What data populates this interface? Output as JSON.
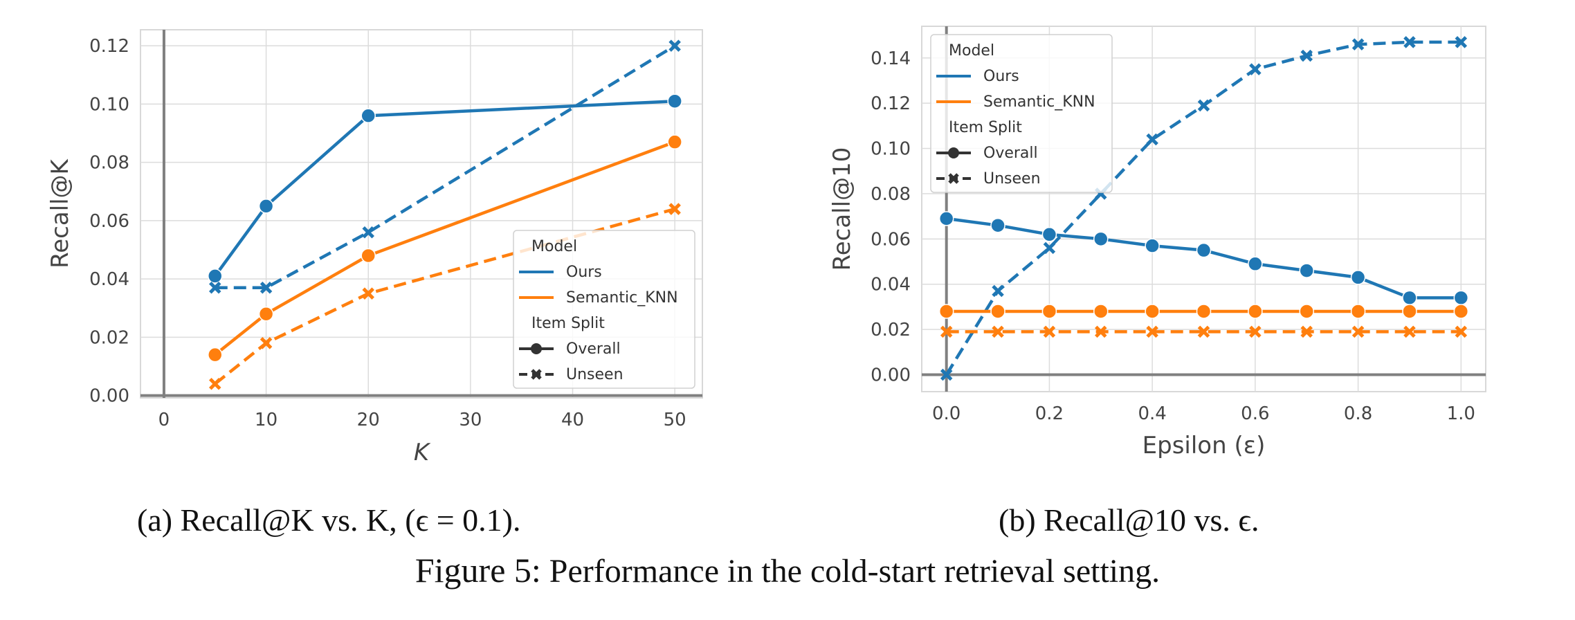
{
  "chart_data": [
    {
      "type": "line",
      "id": "a",
      "title": "",
      "xlabel": "K",
      "ylabel": "Recall@K",
      "x": [
        5,
        10,
        20,
        50
      ],
      "xlim": [
        -2.3,
        52.7
      ],
      "ylim": [
        -0.0008,
        0.1255
      ],
      "xticks": [
        0,
        10,
        20,
        30,
        40,
        50
      ],
      "xtick_labels": [
        "0",
        "10",
        "20",
        "30",
        "40",
        "50"
      ],
      "yticks": [
        0.0,
        0.02,
        0.04,
        0.06,
        0.08,
        0.1,
        0.12
      ],
      "ytick_labels": [
        "0.00",
        "0.02",
        "0.04",
        "0.06",
        "0.08",
        "0.10",
        "0.12"
      ],
      "grid": true,
      "legend_position": "lower-right",
      "series": [
        {
          "name": "Ours - Overall",
          "model": "Ours",
          "split": "Overall",
          "color": "#1f77b4",
          "dash": false,
          "marker": "circle",
          "values": [
            0.041,
            0.065,
            0.096,
            0.101
          ]
        },
        {
          "name": "Ours - Unseen",
          "model": "Ours",
          "split": "Unseen",
          "color": "#1f77b4",
          "dash": true,
          "marker": "x",
          "values": [
            0.037,
            0.037,
            0.056,
            0.12
          ]
        },
        {
          "name": "Semantic_KNN - Overall",
          "model": "Semantic_KNN",
          "split": "Overall",
          "color": "#ff7f0e",
          "dash": false,
          "marker": "circle",
          "values": [
            0.014,
            0.028,
            0.048,
            0.087
          ]
        },
        {
          "name": "Semantic_KNN - Unseen",
          "model": "Semantic_KNN",
          "split": "Unseen",
          "color": "#ff7f0e",
          "dash": true,
          "marker": "x",
          "values": [
            0.004,
            0.018,
            0.035,
            0.064
          ]
        }
      ]
    },
    {
      "type": "line",
      "id": "b",
      "title": "",
      "xlabel": "Epsilon (ε)",
      "ylabel": "Recall@10",
      "x": [
        0.0,
        0.1,
        0.2,
        0.3,
        0.4,
        0.5,
        0.6,
        0.7,
        0.8,
        0.9,
        1.0
      ],
      "xlim": [
        -0.048,
        1.048
      ],
      "ylim": [
        -0.0075,
        0.154
      ],
      "xticks": [
        0.0,
        0.2,
        0.4,
        0.6,
        0.8,
        1.0
      ],
      "xtick_labels": [
        "0.0",
        "0.2",
        "0.4",
        "0.6",
        "0.8",
        "1.0"
      ],
      "yticks": [
        0.0,
        0.02,
        0.04,
        0.06,
        0.08,
        0.1,
        0.12,
        0.14
      ],
      "ytick_labels": [
        "0.00",
        "0.02",
        "0.04",
        "0.06",
        "0.08",
        "0.10",
        "0.12",
        "0.14"
      ],
      "grid": true,
      "legend_position": "upper-left",
      "series": [
        {
          "name": "Ours - Overall",
          "model": "Ours",
          "split": "Overall",
          "color": "#1f77b4",
          "dash": false,
          "marker": "circle",
          "values": [
            0.069,
            0.066,
            0.062,
            0.06,
            0.057,
            0.055,
            0.049,
            0.046,
            0.043,
            0.034,
            0.034
          ]
        },
        {
          "name": "Ours - Unseen",
          "model": "Ours",
          "split": "Unseen",
          "color": "#1f77b4",
          "dash": true,
          "marker": "x",
          "values": [
            0.0,
            0.037,
            0.056,
            0.08,
            0.104,
            0.119,
            0.135,
            0.141,
            0.146,
            0.147,
            0.147
          ]
        },
        {
          "name": "Semantic_KNN - Overall",
          "model": "Semantic_KNN",
          "split": "Overall",
          "color": "#ff7f0e",
          "dash": false,
          "marker": "circle",
          "values": [
            0.028,
            0.028,
            0.028,
            0.028,
            0.028,
            0.028,
            0.028,
            0.028,
            0.028,
            0.028,
            0.028
          ]
        },
        {
          "name": "Semantic_KNN - Unseen",
          "model": "Semantic_KNN",
          "split": "Unseen",
          "color": "#ff7f0e",
          "dash": true,
          "marker": "x",
          "values": [
            0.019,
            0.019,
            0.019,
            0.019,
            0.019,
            0.019,
            0.019,
            0.019,
            0.019,
            0.019,
            0.019
          ]
        }
      ]
    }
  ],
  "legend": {
    "model_title": "Model",
    "models": [
      {
        "label": "Ours",
        "color": "#1f77b4"
      },
      {
        "label": "Semantic_KNN",
        "color": "#ff7f0e"
      }
    ],
    "split_title": "Item Split",
    "splits": [
      {
        "label": "Overall",
        "marker": "circle",
        "dash": false
      },
      {
        "label": "Unseen",
        "marker": "x",
        "dash": true
      }
    ]
  },
  "captions": {
    "a": "(a) Recall@K vs. K, (ϵ = 0.1).",
    "b": "(b) Recall@10 vs. ϵ.",
    "figure_label": "Figure 5:",
    "figure_text": " Performance in the cold-start retrieval setting."
  }
}
